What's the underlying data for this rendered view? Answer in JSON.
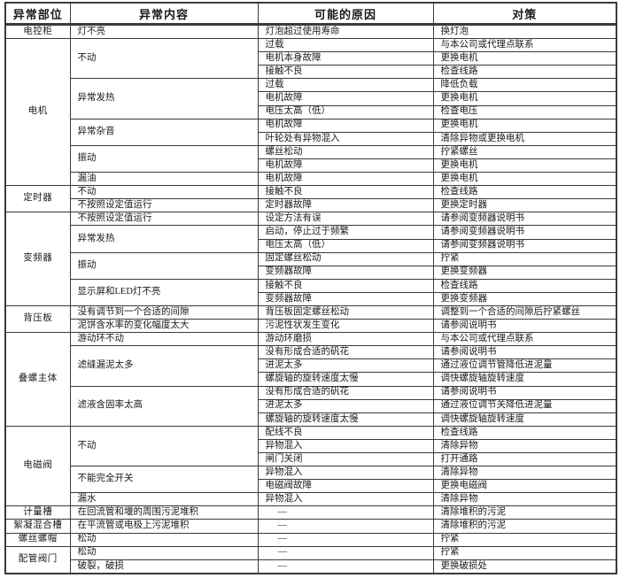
{
  "colors": {
    "border": "#3a3a3a",
    "text": "#1a1a1a",
    "background": "#ffffff"
  },
  "table": {
    "headers": [
      "异常部位",
      "异常内容",
      "可能的原因",
      "对策"
    ],
    "sections": [
      {
        "part": "电控柜",
        "groups": [
          {
            "content": "灯不亮",
            "rows": [
              {
                "cause": "灯泡超过使用寿命",
                "action": "换灯泡"
              }
            ]
          }
        ]
      },
      {
        "part": "电机",
        "groups": [
          {
            "content": "不动",
            "rows": [
              {
                "cause": "过载",
                "action": "与本公司或代理点联系"
              },
              {
                "cause": "电机本身故障",
                "action": "更换电机"
              },
              {
                "cause": "接触不良",
                "action": "检查线路"
              }
            ]
          },
          {
            "content": "异常发热",
            "rows": [
              {
                "cause": "过载",
                "action": "降低负载"
              },
              {
                "cause": "电机故障",
                "action": "更换电机"
              },
              {
                "cause": "电压太高（低）",
                "action": "检查电压"
              }
            ]
          },
          {
            "content": "异常杂音",
            "rows": [
              {
                "cause": "电机故障",
                "action": "更换电机"
              },
              {
                "cause": "叶轮处有异物混入",
                "action": "清除异物或更换电机"
              }
            ]
          },
          {
            "content": "振动",
            "rows": [
              {
                "cause": "螺丝松动",
                "action": "拧紧螺丝"
              },
              {
                "cause": "电机故障",
                "action": "更换电机"
              }
            ]
          },
          {
            "content": "漏油",
            "rows": [
              {
                "cause": "电机故障",
                "action": "更换电机"
              }
            ]
          }
        ]
      },
      {
        "part": "定时器",
        "groups": [
          {
            "content": "不动",
            "rows": [
              {
                "cause": "接触不良",
                "action": "检查线路"
              }
            ]
          },
          {
            "content": "不按照设定值运行",
            "rows": [
              {
                "cause": "定时器故障",
                "action": "更换定时器"
              }
            ]
          }
        ]
      },
      {
        "part": "变频器",
        "groups": [
          {
            "content": "不按照设定值运行",
            "rows": [
              {
                "cause": "设定方法有误",
                "action": "请参阅变频器说明书"
              }
            ]
          },
          {
            "content": "异常发热",
            "rows": [
              {
                "cause": "启动，停止过于频繁",
                "action": "请参阅变频器说明书"
              },
              {
                "cause": "电压太高（低）",
                "action": "请参阅变频器说明书"
              }
            ]
          },
          {
            "content": "振动",
            "rows": [
              {
                "cause": "固定螺丝松动",
                "action": "拧紧"
              },
              {
                "cause": "变频器故障",
                "action": "更换变频器"
              }
            ]
          },
          {
            "content": "显示屏和LED灯不亮",
            "rows": [
              {
                "cause": "接触不良",
                "action": "检查线路"
              },
              {
                "cause": "变频器故障",
                "action": "更换变频器"
              }
            ]
          }
        ]
      },
      {
        "part": "背压板",
        "groups": [
          {
            "content": "没有调节到一个合适的间隙",
            "rows": [
              {
                "cause": "背压板固定螺丝松动",
                "action": "调整到一个合适的间隙后拧紧螺丝"
              }
            ]
          },
          {
            "content": "泥饼含水率的变化幅度太大",
            "rows": [
              {
                "cause": "污泥性状发生变化",
                "action": "请参阅说明书"
              }
            ]
          }
        ]
      },
      {
        "part": "叠螺主体",
        "groups": [
          {
            "content": "游动环不动",
            "rows": [
              {
                "cause": "游动环磨损",
                "action": "与本公司或代理点联系"
              }
            ]
          },
          {
            "content": "滤缝漏泥太多",
            "rows": [
              {
                "cause": "没有形成合适的矾花",
                "action": "请参阅说明书"
              },
              {
                "cause": "进泥太多",
                "action": "通过液位调节管降低进泥量"
              },
              {
                "cause": "螺旋轴的旋转速度太慢",
                "action": "调快螺旋轴旋转速度"
              }
            ]
          },
          {
            "content": "滤液含固率太高",
            "rows": [
              {
                "cause": "没有形成合适的矾花",
                "action": "请参阅说明书"
              },
              {
                "cause": "进泥太多",
                "action": "通过液位调节关降低进泥量"
              },
              {
                "cause": "螺旋轴的旋转速度太慢",
                "action": "调快螺旋轴旋转速度"
              }
            ]
          }
        ]
      },
      {
        "part": "电磁阀",
        "groups": [
          {
            "content": "不动",
            "rows": [
              {
                "cause": "配线不良",
                "action": "检查线路"
              },
              {
                "cause": "异物混入",
                "action": "清除异物"
              },
              {
                "cause": "闸门关闭",
                "action": "打开通路"
              }
            ]
          },
          {
            "content": "不能完全开关",
            "rows": [
              {
                "cause": "异物混入",
                "action": "清除异物"
              },
              {
                "cause": "电磁阀故障",
                "action": "更换电磁阀"
              }
            ]
          },
          {
            "content": "漏水",
            "rows": [
              {
                "cause": "异物混入",
                "action": "清除异物"
              }
            ]
          }
        ]
      },
      {
        "part": "计量槽",
        "groups": [
          {
            "content": "在回流管和堰的周围污泥堆积",
            "rows": [
              {
                "cause": "—",
                "action": "清除堆积的污泥"
              }
            ]
          }
        ]
      },
      {
        "part": "絮凝混合槽",
        "groups": [
          {
            "content": "在平流管或电极上污泥堆积",
            "rows": [
              {
                "cause": "—",
                "action": "清除堆积的污泥"
              }
            ]
          }
        ]
      },
      {
        "part": "螺丝螺帽",
        "groups": [
          {
            "content": "松动",
            "rows": [
              {
                "cause": "—",
                "action": "拧紧"
              }
            ]
          }
        ]
      },
      {
        "part": "配管阀门",
        "groups": [
          {
            "content": "松动",
            "rows": [
              {
                "cause": "—",
                "action": "拧紧"
              }
            ]
          },
          {
            "content": "破裂，破损",
            "rows": [
              {
                "cause": "—",
                "action": "更换破损处"
              }
            ]
          }
        ]
      }
    ]
  }
}
